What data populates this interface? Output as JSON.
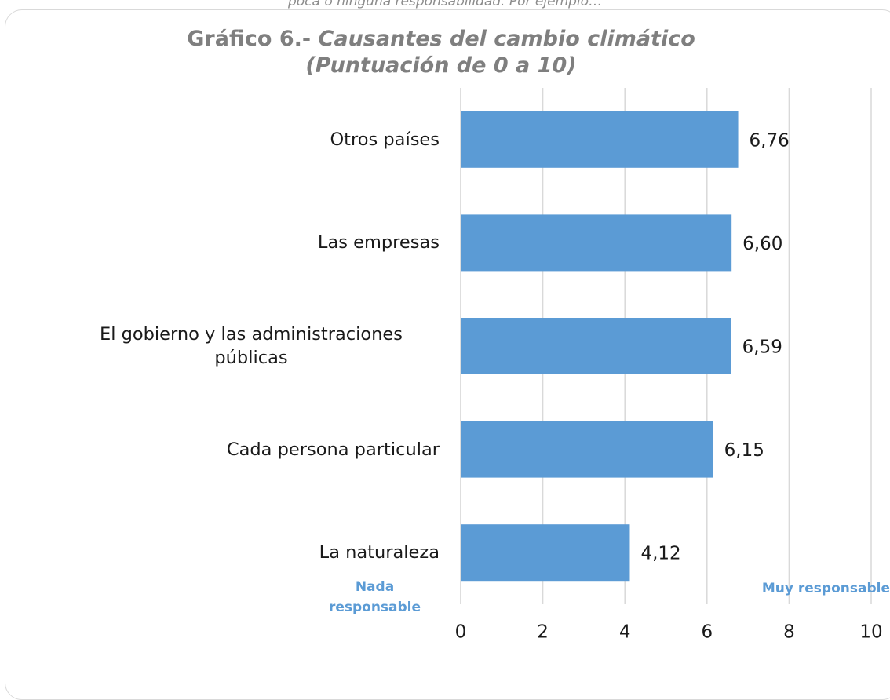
{
  "chart_data": {
    "type": "barh",
    "header_text": "poca o ninguna responsabilidad. Por ejemplo…",
    "title_prefix": "Gráfico 6.-",
    "title": "Causantes del cambio climático",
    "subtitle": "(Puntuación de 0 a 10)",
    "categories": [
      "Otros países",
      "Las empresas",
      "El gobierno y las administraciones públicas",
      "Cada persona particular",
      "La naturaleza"
    ],
    "values": [
      6.76,
      6.6,
      6.59,
      6.15,
      4.12
    ],
    "value_labels": [
      "6,76",
      "6,60",
      "6,59",
      "6,15",
      "4,12"
    ],
    "color": "#5b9bd5",
    "xlim": [
      0,
      10
    ],
    "xticks": [
      0,
      2,
      4,
      6,
      8,
      10
    ],
    "grid": true,
    "annotations": [
      "Nada responsable",
      "Muy responsable"
    ]
  }
}
